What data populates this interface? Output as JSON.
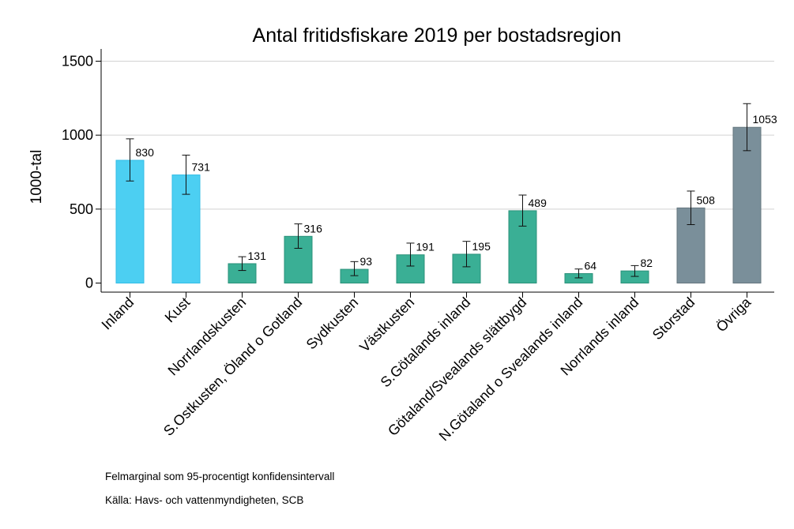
{
  "chart_data": {
    "type": "bar",
    "title": "Antal fritidsfiskare 2019 per bostadsregion",
    "xlabel": "",
    "ylabel": "1000-tal",
    "ylim": [
      0,
      1500
    ],
    "yticks": [
      0,
      500,
      1000,
      1500
    ],
    "grid": true,
    "categories": [
      "Inland",
      "Kust",
      "Norrlandskusten",
      "S.Ostkusten, Öland o Gotland",
      "Sydkusten",
      "Västkusten",
      "S.Götalands inland",
      "Götaland/Svealands slättbygd",
      "N.Götaland o Svealands inland",
      "Norrlands inland",
      "Storstad",
      "Övriga"
    ],
    "values": [
      830,
      731,
      131,
      316,
      93,
      191,
      195,
      489,
      64,
      82,
      508,
      1053
    ],
    "ci_low": [
      690,
      600,
      85,
      235,
      50,
      115,
      110,
      385,
      35,
      45,
      395,
      895
    ],
    "ci_high": [
      975,
      865,
      178,
      400,
      145,
      270,
      282,
      595,
      95,
      118,
      622,
      1213
    ],
    "bar_colors": [
      "#4ccff2",
      "#4ccff2",
      "#3aaf95",
      "#3aaf95",
      "#3aaf95",
      "#3aaf95",
      "#3aaf95",
      "#3aaf95",
      "#3aaf95",
      "#3aaf95",
      "#7a8f9a",
      "#7a8f9a"
    ],
    "bar_edge_colors": [
      "#33bde6",
      "#33bde6",
      "#2b917a",
      "#2b917a",
      "#2b917a",
      "#2b917a",
      "#2b917a",
      "#2b917a",
      "#2b917a",
      "#2b917a",
      "#66777f",
      "#66777f"
    ]
  },
  "notes": {
    "margin": "Felmarginal som 95-procentigt konfidensintervall",
    "source": "Källa: Havs- och vattenmyndigheten, SCB"
  }
}
